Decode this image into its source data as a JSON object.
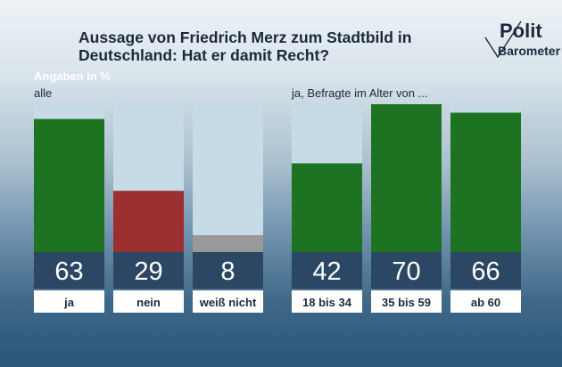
{
  "header": {
    "title": "Aussage von Friedrich Merz zum Stadtbild in Deutschland: Hat er damit Recht?",
    "unit_label": "Angaben in %"
  },
  "logo": {
    "top": "Polit",
    "bottom": "Barometer"
  },
  "colors": {
    "ja": "#1e7322",
    "nein": "#9c2f2f",
    "weiss_nicht": "#999999",
    "track": "#c6dbe6",
    "value_band": "#2c4763",
    "label_band": "#ffffff"
  },
  "chart_data": [
    {
      "type": "bar",
      "subtitle": "alle",
      "categories": [
        "ja",
        "nein",
        "weiß nicht"
      ],
      "values": [
        63,
        29,
        8
      ],
      "bar_colors": [
        "#1e7322",
        "#9c2f2f",
        "#999999"
      ],
      "ylim": [
        0,
        70
      ],
      "grid": false
    },
    {
      "type": "bar",
      "subtitle": "ja, Befragte im Alter von ...",
      "categories": [
        "18 bis 34",
        "35 bis 59",
        "ab 60"
      ],
      "values": [
        42,
        70,
        66
      ],
      "bar_colors": [
        "#1e7322",
        "#1e7322",
        "#1e7322"
      ],
      "ylim": [
        0,
        70
      ],
      "grid": false
    }
  ]
}
